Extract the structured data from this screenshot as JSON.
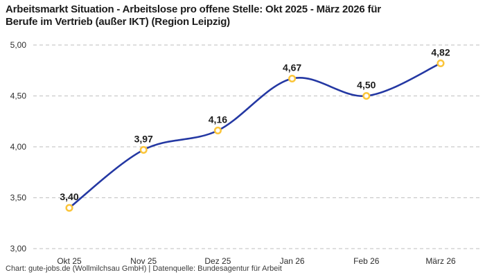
{
  "header": {
    "title": "Arbeitsmarkt Situation - Arbeitslose pro offene Stelle: Okt 2025 - März 2026 für Berufe im Vertrieb (außer IKT) (Region Leipzig)",
    "title_lines": [
      "Arbeitsmarkt Situation - Arbeitslose pro offene Stelle: Okt 2025 - März 2026 für",
      "Berufe im Vertrieb (außer IKT) (Region Leipzig)"
    ]
  },
  "footer": {
    "text": "Chart: gute-jobs.de (Wollmilchsau GmbH) | Datenquelle: Bundesagentur für Arbeit"
  },
  "chart_data": {
    "type": "line",
    "title": "Arbeitsmarkt Situation - Arbeitslose pro offene Stelle: Okt 2025 - März 2026 für Berufe im Vertrieb (außer IKT) (Region Leipzig)",
    "categories": [
      "Okt 25",
      "Nov 25",
      "Dez 25",
      "Jan 26",
      "Feb 26",
      "März 26"
    ],
    "values": [
      3.4,
      3.97,
      4.16,
      4.67,
      4.5,
      4.82
    ],
    "value_labels": [
      "3,40",
      "3,97",
      "4,16",
      "4,67",
      "4,50",
      "4,82"
    ],
    "xlabel": "",
    "ylabel": "",
    "ylim": [
      3.0,
      5.0
    ],
    "yticks": [
      3.0,
      3.5,
      4.0,
      4.5,
      5.0
    ],
    "ytick_labels": [
      "3,00",
      "3,50",
      "4,00",
      "4,50",
      "5,00"
    ],
    "grid": "horizontal-dashed",
    "legend_position": "none",
    "line_style": "smooth",
    "marker_style": "open-circle",
    "colors": {
      "line": "#2438a3",
      "marker_ring": "#fbc53a",
      "marker_fill": "#ffffff",
      "grid": "#c9c9c9",
      "title_text": "#1c1c1c",
      "tick_text": "#2d2d2d",
      "data_label_text": "#1c1c1c",
      "footer_text": "#3a3a3a",
      "background": "#ffffff"
    }
  }
}
